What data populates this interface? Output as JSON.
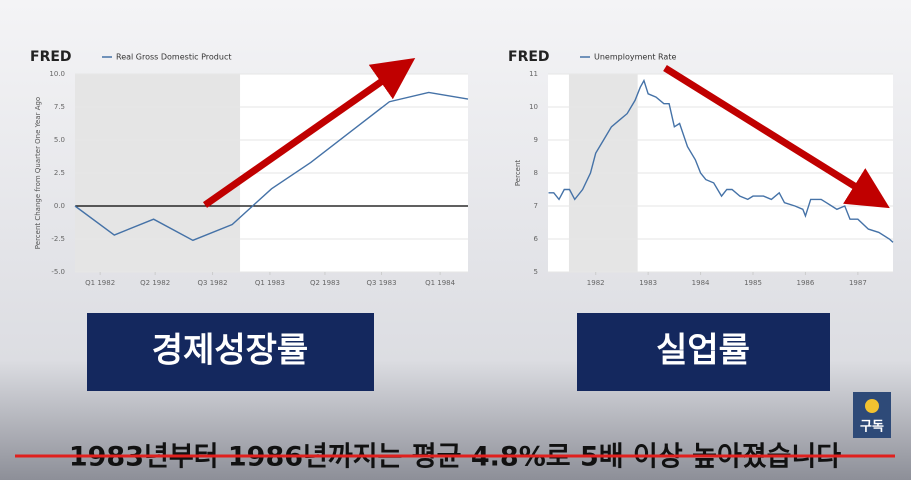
{
  "chart_data": [
    {
      "type": "line",
      "brand": "FRED",
      "ylabel": "Percent Change from Quarter One Year Ago",
      "x": [
        0,
        1,
        2,
        3,
        4,
        5,
        6,
        7,
        8,
        9,
        10
      ],
      "series": [
        {
          "name": "Real Gross Domestic Product",
          "color": "#4572a7",
          "values": [
            0.0,
            -2.2,
            -1.0,
            -2.6,
            -1.4,
            1.3,
            3.3,
            5.6,
            7.9,
            8.6,
            8.1
          ]
        }
      ],
      "xlim": [
        0,
        10
      ],
      "xticks": [
        {
          "value": 0.64,
          "label": "Q1 1982"
        },
        {
          "value": 2.04,
          "label": "Q2 1982"
        },
        {
          "value": 3.5,
          "label": "Q3 1982"
        },
        {
          "value": 4.96,
          "label": "Q1 1983"
        },
        {
          "value": 6.36,
          "label": "Q2 1983"
        },
        {
          "value": 7.8,
          "label": "Q3 1983"
        },
        {
          "value": 9.29,
          "label": "Q1 1984"
        }
      ],
      "ylim": [
        -5,
        10
      ],
      "yticks": [
        {
          "value": 10,
          "label": "10.0"
        },
        {
          "value": 7.5,
          "label": "7.5"
        },
        {
          "value": 5,
          "label": "5.0"
        },
        {
          "value": 2.5,
          "label": "2.5"
        },
        {
          "value": 0,
          "label": "0.0"
        },
        {
          "value": -2.5,
          "label": "-2.5"
        },
        {
          "value": -5,
          "label": "-5.0"
        }
      ],
      "recession": [
        0,
        4.2
      ],
      "zero_line": true,
      "grid": true
    },
    {
      "type": "line",
      "brand": "FRED",
      "ylabel": "Percent",
      "x": [
        1981.1,
        1981.2,
        1981.3,
        1981.4,
        1981.5,
        1981.6,
        1981.75,
        1981.9,
        1982.0,
        1982.15,
        1982.3,
        1982.45,
        1982.6,
        1982.75,
        1982.85,
        1982.92,
        1983.0,
        1983.15,
        1983.3,
        1983.4,
        1983.5,
        1983.6,
        1983.75,
        1983.9,
        1984.0,
        1984.1,
        1984.25,
        1984.4,
        1984.5,
        1984.6,
        1984.75,
        1984.9,
        1985.0,
        1985.2,
        1985.35,
        1985.5,
        1985.6,
        1985.8,
        1985.95,
        1986.0,
        1986.1,
        1986.3,
        1986.4,
        1986.5,
        1986.6,
        1986.75,
        1986.85,
        1987.0,
        1987.2,
        1987.4,
        1987.6,
        1987.67
      ],
      "series": [
        {
          "name": "Unemployment Rate",
          "color": "#4572a7",
          "values": [
            7.4,
            7.4,
            7.2,
            7.5,
            7.5,
            7.2,
            7.5,
            8.0,
            8.6,
            9.0,
            9.4,
            9.6,
            9.8,
            10.2,
            10.6,
            10.8,
            10.4,
            10.3,
            10.1,
            10.1,
            9.4,
            9.5,
            8.8,
            8.4,
            8.0,
            7.8,
            7.7,
            7.3,
            7.5,
            7.5,
            7.3,
            7.2,
            7.3,
            7.3,
            7.2,
            7.4,
            7.1,
            7.0,
            6.9,
            6.7,
            7.2,
            7.2,
            7.1,
            7.0,
            6.9,
            7.0,
            6.6,
            6.6,
            6.3,
            6.2,
            6.0,
            5.9
          ]
        }
      ],
      "xlim": [
        1981.09,
        1987.67
      ],
      "xticks": [
        1982,
        1983,
        1984,
        1985,
        1986,
        1987
      ],
      "ylim": [
        5,
        11
      ],
      "yticks": [
        11,
        10,
        9,
        8,
        7,
        6,
        5
      ],
      "recession": [
        1981.49,
        1982.8
      ],
      "zero_line": false,
      "grid": true
    }
  ],
  "labels": [
    "경제성장률",
    "실업률"
  ],
  "subtitle": "1983년부터 1986년까지는 평균 4.8%로 5배 이상 높아졌습니다",
  "subscribe": "구독"
}
